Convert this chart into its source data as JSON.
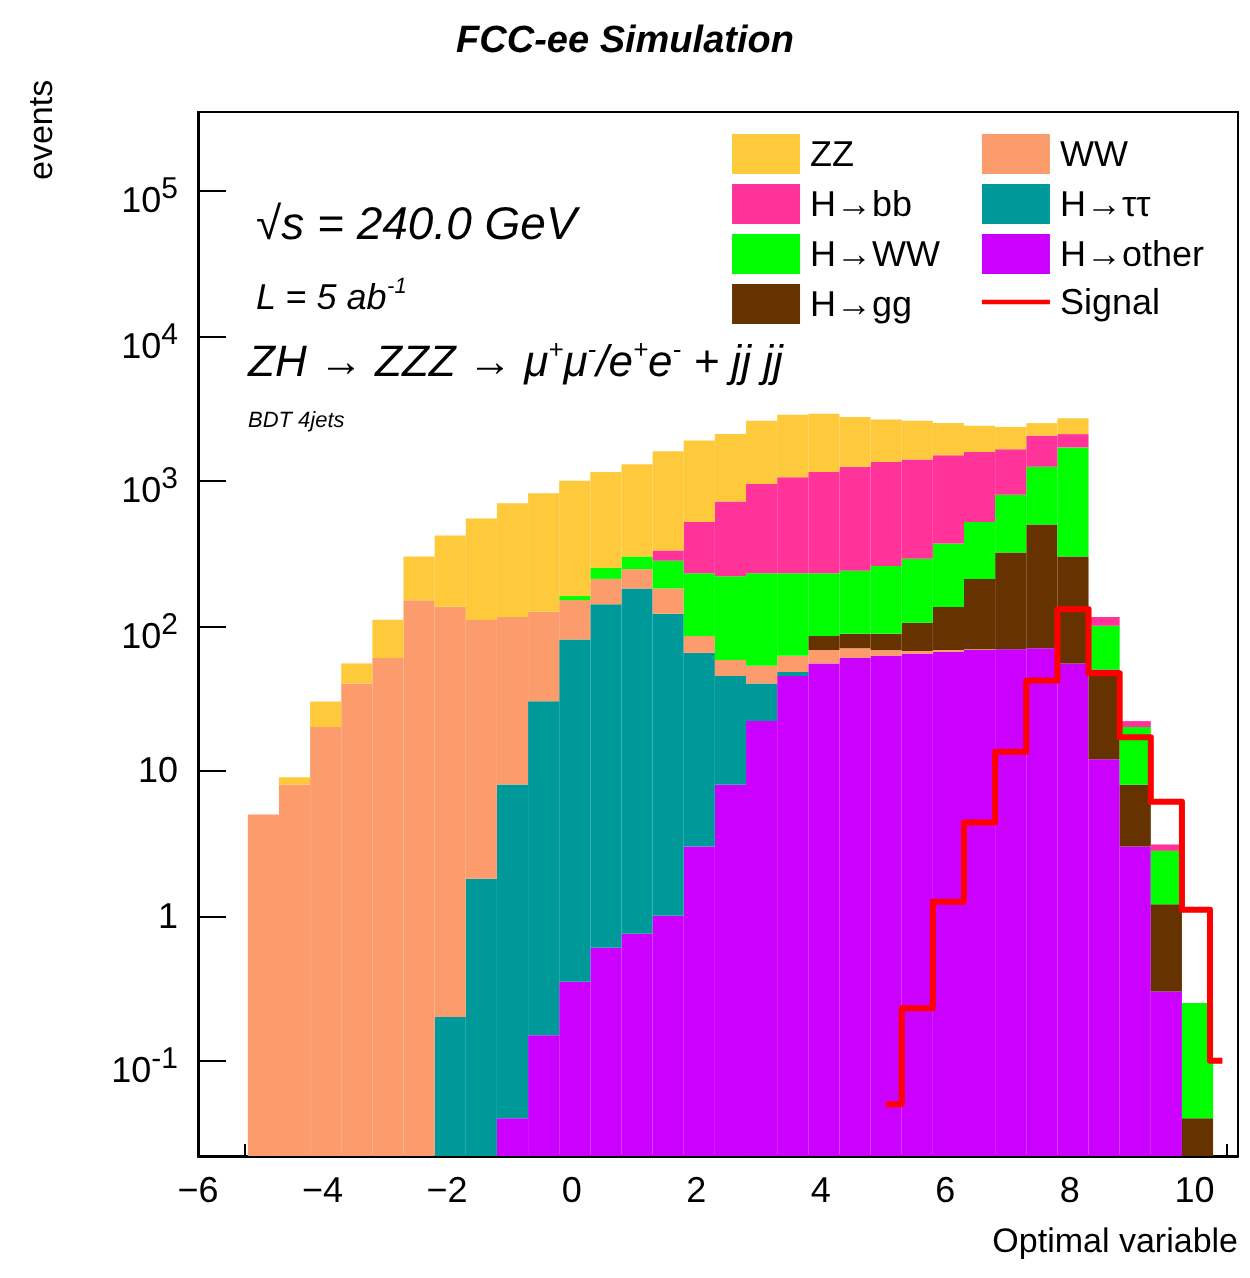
{
  "chart_data": {
    "type": "bar",
    "title": "FCC-ee Simulation",
    "xlabel": "Optimal variable",
    "ylabel": "events",
    "annotations": [
      "√s = 240.0 GeV",
      "L = 5 ab$^{-1}$",
      "ZH → ZZZ → μ$^{+}$μ$^{-}$/e$^{+}$e$^{-}$ + jj jj",
      "BDT 4jets"
    ],
    "x": [
      -4.95,
      -4.45,
      -3.95,
      -3.45,
      -2.95,
      -2.45,
      -1.95,
      -1.45,
      -0.95,
      -0.45,
      0.05,
      0.55,
      1.05,
      1.55,
      2.05,
      2.55,
      3.05,
      3.55,
      4.05,
      4.55,
      5.05,
      5.55,
      6.05,
      6.55,
      7.05,
      7.55,
      8.05,
      8.55,
      9.05,
      9.55,
      10.05
    ],
    "stacked": true,
    "log": "y",
    "grid": false,
    "legend": "top right",
    "xlim": [
      -6,
      10.7
    ],
    "xticks": [
      -6,
      -4,
      -2,
      0,
      2,
      4,
      6,
      8,
      10
    ],
    "ylim": [
      0.022,
      350000
    ],
    "yticks": [
      {
        "value": 0.1,
        "label": "10$^{-1}$"
      },
      1,
      10,
      {
        "value": 100,
        "label": "10$^{2}$"
      },
      {
        "value": 1000,
        "label": "10$^{3}$"
      },
      {
        "value": 10000,
        "label": "10$^{4}$"
      },
      {
        "value": 100000,
        "label": "10$^{5}$"
      }
    ],
    "series": [
      {
        "name": "H→other",
        "color": "#cc00ff",
        "values": [
          null,
          null,
          null,
          null,
          null,
          null,
          null,
          null,
          0.04,
          0.15,
          0.35,
          0.6,
          0.75,
          1.0,
          3,
          8,
          22,
          45,
          55,
          60,
          62,
          64,
          66,
          68,
          69,
          70,
          55,
          12,
          3,
          0.3,
          null
        ]
      },
      {
        "name": "H→ττ",
        "color": "#009999",
        "values": [
          null,
          null,
          null,
          null,
          null,
          null,
          0.2,
          1.8,
          8,
          30,
          80,
          140,
          180,
          120,
          62,
          37,
          18,
          3,
          null,
          null,
          null,
          null,
          null,
          null,
          null,
          null,
          null,
          null,
          null,
          null,
          null
        ]
      },
      {
        "name": "WW",
        "color": "#fc9c6c",
        "values": [
          5,
          8,
          20,
          40,
          60,
          150,
          135,
          108,
          107,
          95,
          70,
          70,
          65,
          60,
          20,
          13,
          13,
          14,
          13,
          10,
          6,
          3,
          2,
          1,
          null,
          null,
          null,
          null,
          null,
          null,
          null
        ]
      },
      {
        "name": "H→gg",
        "color": "#663300",
        "values": [
          null,
          null,
          null,
          null,
          null,
          null,
          null,
          null,
          null,
          null,
          null,
          null,
          null,
          null,
          null,
          null,
          null,
          null,
          17,
          18,
          20,
          38,
          67,
          141,
          251,
          430,
          245,
          38,
          5,
          0.9,
          0.04
        ]
      },
      {
        "name": "H→WW",
        "color": "#00ff00",
        "values": [
          null,
          null,
          null,
          null,
          null,
          null,
          null,
          null,
          null,
          null,
          10,
          40,
          55,
          100,
          145,
          162,
          177,
          168,
          145,
          152,
          170,
          185,
          235,
          310,
          480,
          750,
          1400,
          50,
          12,
          1.6,
          0.21
        ]
      },
      {
        "name": "H→bb",
        "color": "#ff3399",
        "values": [
          null,
          null,
          null,
          null,
          null,
          null,
          null,
          null,
          null,
          null,
          null,
          null,
          null,
          50,
          290,
          500,
          720,
          830,
          920,
          1010,
          1090,
          1110,
          1130,
          1060,
          850,
          800,
          400,
          15,
          2,
          0.3,
          null
        ]
      },
      {
        "name": "ZZ",
        "color": "#ffc93c",
        "values": [
          null,
          1,
          10,
          15,
          50,
          150,
          285,
          440,
          585,
          695,
          840,
          900,
          1000,
          1270,
          1380,
          1380,
          1650,
          1790,
          1750,
          1500,
          1300,
          1200,
          1000,
          820,
          700,
          450,
          600,
          null,
          null,
          null,
          null
        ]
      },
      {
        "name": "Signal",
        "type": "step",
        "color": "#ff0000",
        "x": [
          5.05,
          5.55,
          6.05,
          6.55,
          7.05,
          7.55,
          8.05,
          8.55,
          9.05,
          9.55,
          10.05,
          10.45
        ],
        "values": [
          0.05,
          0.23,
          1.25,
          4.4,
          13.5,
          42,
          130,
          47,
          17,
          6.1,
          1.1,
          0.1
        ]
      }
    ]
  }
}
